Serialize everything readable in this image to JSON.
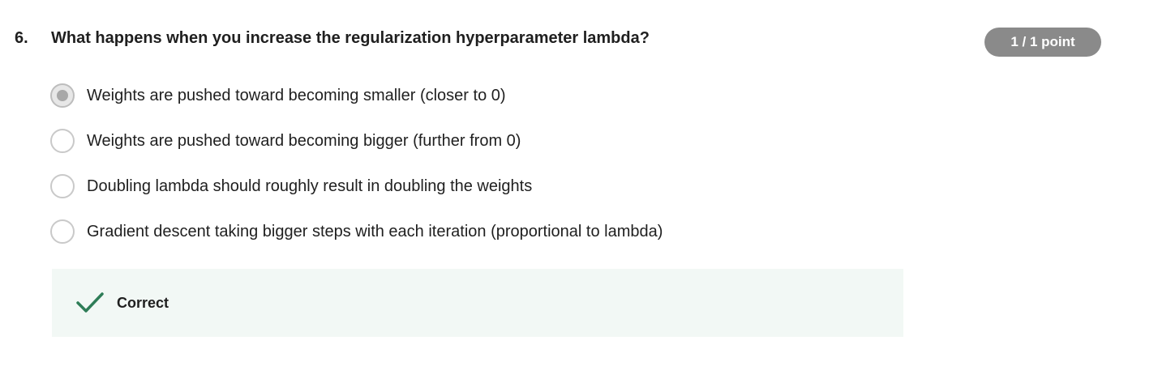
{
  "question": {
    "number": "6.",
    "text": "What happens when you increase the regularization hyperparameter lambda?",
    "score": "1 / 1 point"
  },
  "options": [
    {
      "label": "Weights are pushed toward becoming smaller (closer to 0)",
      "selected": true
    },
    {
      "label": "Weights are pushed toward becoming bigger (further from 0)",
      "selected": false
    },
    {
      "label": "Doubling lambda should roughly result in doubling the weights",
      "selected": false
    },
    {
      "label": "Gradient descent taking bigger steps with each iteration (proportional to lambda)",
      "selected": false
    }
  ],
  "feedback": {
    "status": "Correct",
    "icon": "checkmark-icon",
    "color": "#2e7d57",
    "background": "#f2f8f5"
  },
  "colors": {
    "badge": "#8a8a8a",
    "text": "#1f1f1f"
  }
}
